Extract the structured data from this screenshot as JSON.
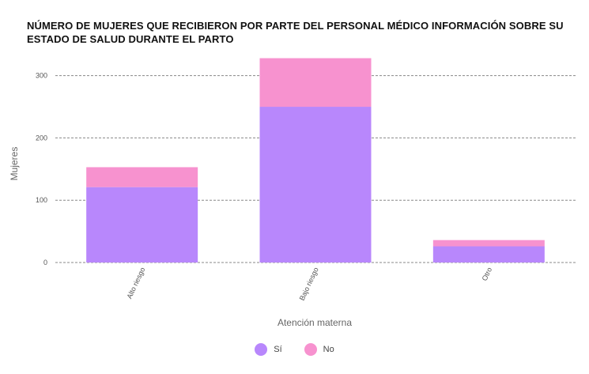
{
  "chart_data": {
    "type": "bar",
    "stacked": true,
    "title": "NÚMERO DE MUJERES QUE RECIBIERON POR PARTE DEL PERSONAL MÉDICO INFORMACIÓN SOBRE SU ESTADO DE SALUD DURANTE EL PARTO",
    "xlabel": "Atención materna",
    "ylabel": "Mujeres",
    "categories": [
      "Alto riesgo",
      "Bajo riesgo",
      "Otro"
    ],
    "series": [
      {
        "name": "Sí",
        "values": [
          121,
          250,
          26
        ],
        "color": "#b887fc"
      },
      {
        "name": "No",
        "values": [
          32,
          78,
          10
        ],
        "color": "#f792cf"
      }
    ],
    "ylim": [
      0,
      330
    ],
    "yticks": [
      0,
      100,
      200,
      300
    ],
    "grid": true,
    "legend_position": "bottom-center"
  }
}
